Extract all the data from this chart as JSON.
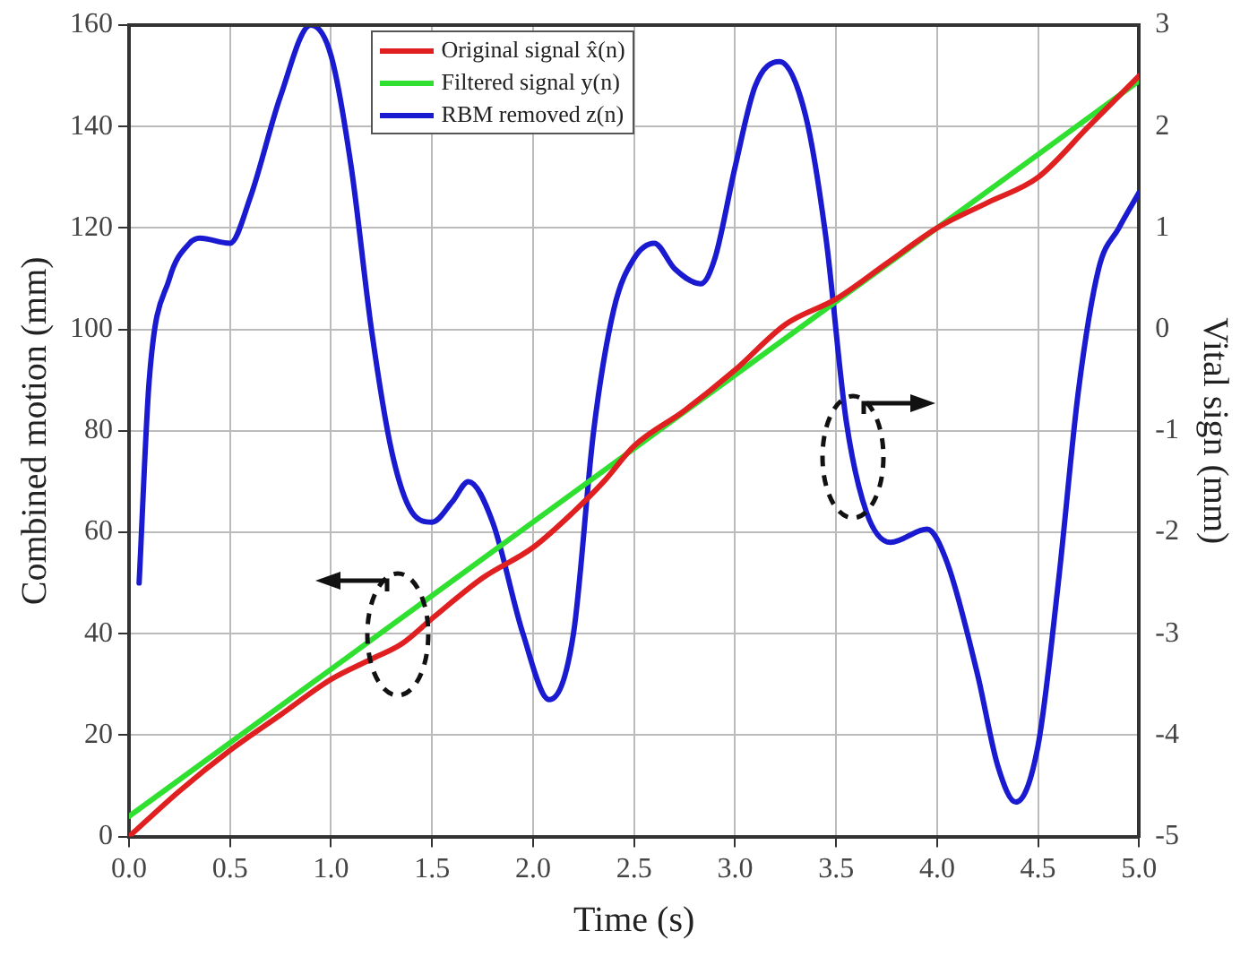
{
  "chart_data": {
    "type": "line",
    "xlabel": "Time (s)",
    "ylabel": "Combined motion (mm)",
    "y2label": "Vital sign (mm)",
    "xlim": [
      0,
      5
    ],
    "xticks": [
      {
        "value": 0,
        "label": "0.0"
      },
      {
        "value": 0.5,
        "label": "0.5"
      },
      {
        "value": 1,
        "label": "1.0"
      },
      {
        "value": 1.5,
        "label": "1.5"
      },
      {
        "value": 2,
        "label": "2.0"
      },
      {
        "value": 2.5,
        "label": "2.5"
      },
      {
        "value": 3,
        "label": "3.0"
      },
      {
        "value": 3.5,
        "label": "3.5"
      },
      {
        "value": 4,
        "label": "4.0"
      },
      {
        "value": 4.5,
        "label": "4.5"
      },
      {
        "value": 5,
        "label": "5.0"
      }
    ],
    "ylim": [
      0,
      160
    ],
    "yticks": [
      0,
      20,
      40,
      60,
      80,
      100,
      120,
      140,
      160
    ],
    "y2lim": [
      -5,
      3
    ],
    "y2ticks": [
      -5,
      -4,
      -3,
      -2,
      -1,
      0,
      1,
      2,
      3
    ],
    "grid": true,
    "legend": "top",
    "line_style": "solid",
    "marker": "none",
    "series": [
      {
        "name": "Original signal x̂(n)",
        "color": "#e02020",
        "x": [
          0,
          0.25,
          0.5,
          0.75,
          1.0,
          1.2,
          1.35,
          1.5,
          1.75,
          2.0,
          2.2,
          2.35,
          2.5,
          2.75,
          3.0,
          3.25,
          3.5,
          3.75,
          4.0,
          4.25,
          4.5,
          4.75,
          5.0
        ],
        "values": [
          0,
          9,
          17,
          24,
          31,
          35,
          38,
          43,
          51,
          57,
          64,
          70,
          77,
          84,
          92,
          101,
          106,
          113,
          120,
          125,
          130,
          140,
          150
        ]
      },
      {
        "name": "Filtered signal y(n)",
        "color": "#30e030",
        "x": [
          0,
          1,
          2,
          3,
          4,
          5
        ],
        "values": [
          4,
          33,
          62,
          91,
          120,
          149
        ]
      },
      {
        "name": "RBM removed z(n)",
        "color": "#1a1ad0",
        "axis": "y2",
        "x": [
          0.05,
          0.1,
          0.2,
          0.3,
          0.35,
          0.5,
          0.6,
          0.75,
          0.9,
          1.0,
          1.1,
          1.2,
          1.3,
          1.4,
          1.5,
          1.6,
          1.68,
          1.8,
          1.95,
          2.08,
          2.2,
          2.3,
          2.4,
          2.5,
          2.6,
          2.7,
          2.83,
          2.9,
          3.0,
          3.1,
          3.22,
          3.35,
          3.45,
          3.55,
          3.65,
          3.77,
          3.95,
          4.05,
          4.2,
          4.3,
          4.39,
          4.5,
          4.6,
          4.7,
          4.8,
          4.9,
          5.0
        ],
        "values": [
          -2.5,
          -0.5,
          0.5,
          0.85,
          0.9,
          0.85,
          1.3,
          2.3,
          3.0,
          2.7,
          1.6,
          0.0,
          -1.2,
          -1.8,
          -1.9,
          -1.7,
          -1.5,
          -1.9,
          -3.0,
          -3.65,
          -3.0,
          -1.0,
          0.2,
          0.7,
          0.85,
          0.6,
          0.45,
          0.7,
          1.6,
          2.4,
          2.64,
          2.1,
          0.9,
          -0.9,
          -1.8,
          -2.1,
          -1.97,
          -2.3,
          -3.4,
          -4.3,
          -4.66,
          -4.1,
          -2.5,
          -0.6,
          0.6,
          1.0,
          1.35
        ]
      }
    ]
  }
}
